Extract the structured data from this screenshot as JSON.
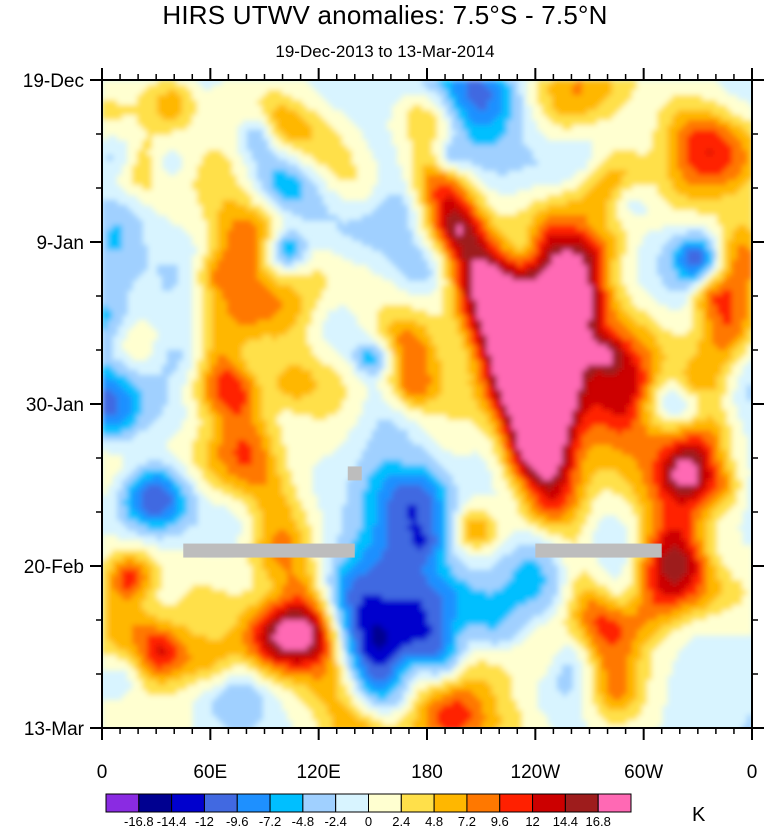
{
  "chart_data": {
    "type": "heatmap",
    "title": "HIRS UTWV anomalies: 7.5°S - 7.5°N",
    "subtitle": "19-Dec-2013 to 13-Mar-2014",
    "xlabel": "Longitude",
    "ylabel": "Date",
    "x_ticks": [
      "0",
      "60E",
      "120E",
      "180",
      "120W",
      "60W",
      "0"
    ],
    "y_ticks": [
      "19-Dec",
      "9-Jan",
      "30-Jan",
      "20-Feb",
      "13-Mar"
    ],
    "colorbar": {
      "units": "K",
      "levels": [
        "-16.8",
        "-14.4",
        "-12",
        "-9.6",
        "-7.2",
        "-4.8",
        "-2.4",
        "0",
        "2.4",
        "4.8",
        "7.2",
        "9.6",
        "12",
        "14.4",
        "16.8"
      ],
      "colors": [
        "#8a2be2",
        "#000090",
        "#0000cd",
        "#4169e1",
        "#1e90ff",
        "#00bfff",
        "#a0d0ff",
        "#d8f4ff",
        "#ffffd0",
        "#ffe04a",
        "#ffb700",
        "#ff7800",
        "#ff2000",
        "#cc0000",
        "#9e1c1c",
        "#ff69b4"
      ]
    },
    "features": [
      {
        "lon": 165,
        "date": "2014-01-23",
        "value": 10.5
      },
      {
        "lon": 60,
        "date": "2014-01-27",
        "value": 10.0
      },
      {
        "lon": 95,
        "date": "2014-03-02",
        "value": 11.5
      },
      {
        "lon": 200,
        "date": "2014-03-01",
        "value": 10.5
      },
      {
        "lon": 178,
        "date": "2013-12-24",
        "value": 9.5
      },
      {
        "lon": 255,
        "date": "2014-01-14",
        "value": 10.0
      },
      {
        "lon": 195,
        "date": "2014-03-11",
        "value": 9.0
      },
      {
        "lon": 30,
        "date": "2014-02-11",
        "value": -15.5
      },
      {
        "lon": 135,
        "date": "2014-02-24",
        "value": -9.0
      },
      {
        "lon": 145,
        "date": "2014-03-02",
        "value": -10.0
      },
      {
        "lon": 5,
        "date": "2014-02-01",
        "value": -11.0
      },
      {
        "lon": 280,
        "date": "2014-01-26",
        "value": -8.0
      },
      {
        "lon": 105,
        "date": "2014-01-02",
        "value": -7.5
      }
    ],
    "missing_data": [
      {
        "lon_range": [
          45,
          140
        ],
        "date": "2014-02-18"
      },
      {
        "lon_range": [
          240,
          310
        ],
        "date": "2014-02-18"
      },
      {
        "lon": 140,
        "date": "2014-02-08"
      }
    ]
  }
}
